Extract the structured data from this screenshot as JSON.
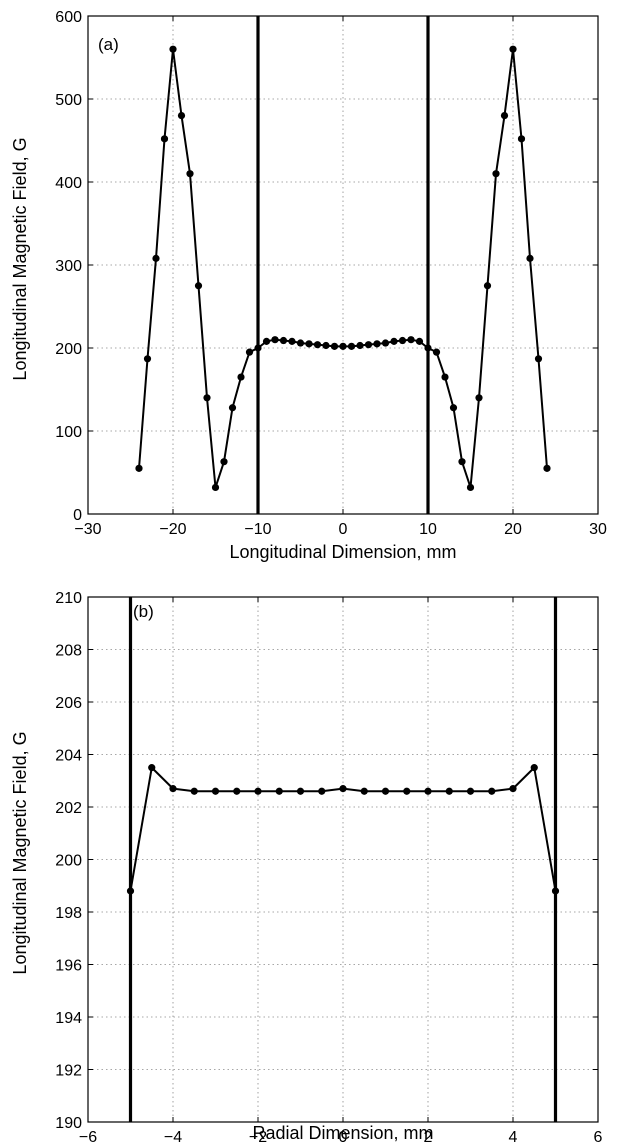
{
  "chart_data": [
    {
      "type": "line",
      "panel_label": "(a)",
      "xlabel": "Longitudinal Dimension, mm",
      "ylabel": "Longitudinal Magnetic Field, G",
      "xlim": [
        -30,
        30
      ],
      "ylim": [
        0,
        600
      ],
      "xticks": [
        -30,
        -20,
        -10,
        0,
        10,
        20,
        30
      ],
      "yticks": [
        0,
        100,
        200,
        300,
        400,
        500,
        600
      ],
      "xtick_labels": [
        "−30",
        "−20",
        "−10",
        "0",
        "10",
        "20",
        "30"
      ],
      "ytick_labels": [
        "0",
        "100",
        "200",
        "300",
        "400",
        "500",
        "600"
      ],
      "grid": true,
      "markers": true,
      "vertical_lines": [
        -10,
        10
      ],
      "x": [
        -24,
        -23,
        -22,
        -21,
        -20,
        -19,
        -18,
        -17,
        -16,
        -15,
        -14,
        -13,
        -12,
        -11,
        -10,
        -9,
        -8,
        -7,
        -6,
        -5,
        -4,
        -3,
        -2,
        -1,
        0,
        1,
        2,
        3,
        4,
        5,
        6,
        7,
        8,
        9,
        10,
        11,
        12,
        13,
        14,
        15,
        16,
        17,
        18,
        19,
        20,
        21,
        22,
        23,
        24
      ],
      "y": [
        55,
        187,
        308,
        452,
        560,
        480,
        410,
        275,
        140,
        32,
        63,
        128,
        165,
        195,
        200,
        208,
        210,
        209,
        208,
        206,
        205,
        204,
        203,
        202,
        202,
        202,
        203,
        204,
        205,
        206,
        208,
        209,
        210,
        208,
        200,
        195,
        165,
        128,
        63,
        32,
        140,
        275,
        410,
        480,
        560,
        452,
        308,
        187,
        55
      ]
    },
    {
      "type": "line",
      "panel_label": "(b)",
      "xlabel": "Radial Dimension, mm",
      "ylabel": "Longitudinal Magnetic Field, G",
      "xlim": [
        -6,
        6
      ],
      "ylim": [
        190,
        210
      ],
      "xticks": [
        -6,
        -4,
        -2,
        0,
        2,
        4,
        6
      ],
      "yticks": [
        190,
        192,
        194,
        196,
        198,
        200,
        202,
        204,
        206,
        208,
        210
      ],
      "xtick_labels": [
        "−6",
        "−4",
        "−2",
        "0",
        "2",
        "4",
        "6"
      ],
      "ytick_labels": [
        "190",
        "192",
        "194",
        "196",
        "198",
        "200",
        "202",
        "204",
        "206",
        "208",
        "210"
      ],
      "grid": true,
      "markers": true,
      "vertical_lines": [
        -5,
        5
      ],
      "x": [
        -5,
        -4.5,
        -4,
        -3.5,
        -3,
        -2.5,
        -2,
        -1.5,
        -1,
        -0.5,
        0,
        0.5,
        1,
        1.5,
        2,
        2.5,
        3,
        3.5,
        4,
        4.5,
        5
      ],
      "y": [
        198.8,
        203.5,
        202.7,
        202.6,
        202.6,
        202.6,
        202.6,
        202.6,
        202.6,
        202.6,
        202.7,
        202.6,
        202.6,
        202.6,
        202.6,
        202.6,
        202.6,
        202.6,
        202.7,
        203.5,
        198.8
      ]
    }
  ]
}
